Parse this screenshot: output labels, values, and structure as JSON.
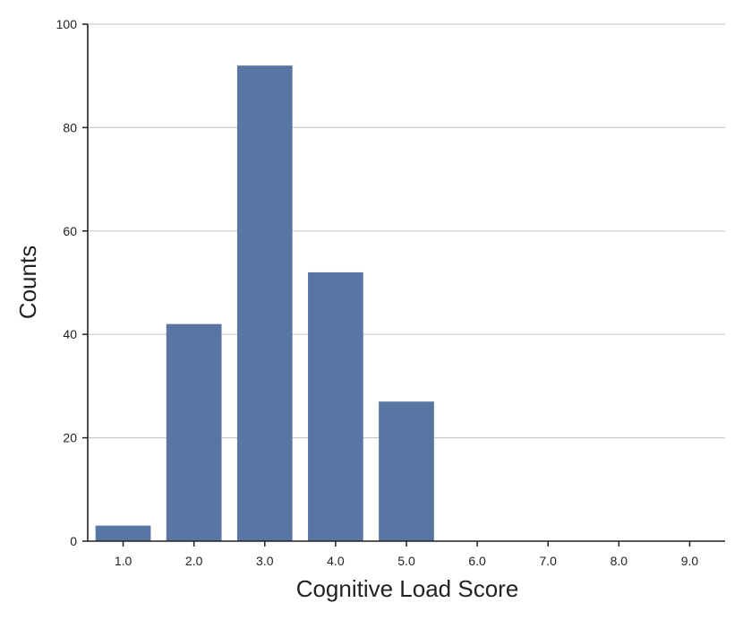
{
  "chart_data": {
    "type": "bar",
    "title": "",
    "xlabel": "Cognitive Load Score",
    "ylabel": "Counts",
    "categories": [
      "1.0",
      "2.0",
      "3.0",
      "4.0",
      "5.0",
      "6.0",
      "7.0",
      "8.0",
      "9.0"
    ],
    "values": [
      3,
      42,
      92,
      52,
      27,
      0,
      0,
      0,
      0
    ],
    "ylim": [
      0,
      100
    ],
    "yticks": [
      0,
      20,
      40,
      60,
      80,
      100
    ],
    "grid": "horizontal",
    "legend": "none",
    "bar_color": "#5975a4",
    "grid_color": "#cccccc",
    "axis_color": "#222222"
  }
}
